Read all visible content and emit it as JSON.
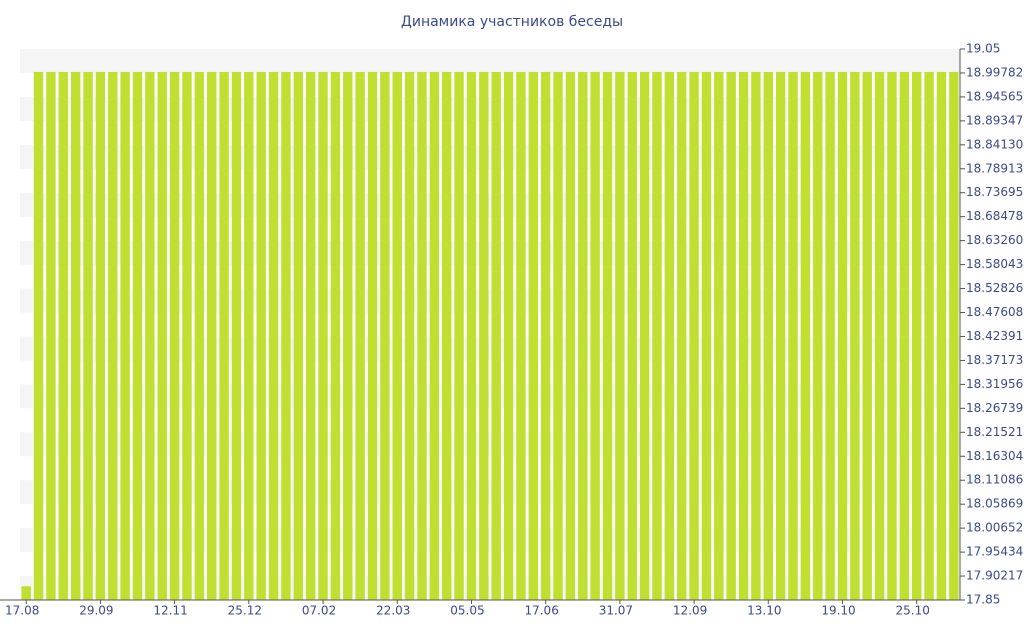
{
  "chart_data": {
    "type": "bar",
    "title": "Динамика участников беседы",
    "categories": [
      "17.08",
      null,
      null,
      null,
      null,
      null,
      "29.09",
      null,
      null,
      null,
      null,
      null,
      "12.11",
      null,
      null,
      null,
      null,
      null,
      "25.12",
      null,
      null,
      null,
      null,
      null,
      "07.02",
      null,
      null,
      null,
      null,
      null,
      "22.03",
      null,
      null,
      null,
      null,
      null,
      "05.05",
      null,
      null,
      null,
      null,
      null,
      "17.06",
      null,
      null,
      null,
      null,
      null,
      "31.07",
      null,
      null,
      null,
      null,
      null,
      "12.09",
      null,
      null,
      null,
      null,
      null,
      "13.10",
      null,
      null,
      null,
      null,
      null,
      "19.10",
      null,
      null,
      null,
      null,
      null,
      "25.10",
      null,
      null,
      null
    ],
    "values": [
      17.88,
      19,
      19,
      19,
      19,
      19,
      19,
      19,
      19,
      19,
      19,
      19,
      19,
      19,
      19,
      19,
      19,
      19,
      19,
      19,
      19,
      19,
      19,
      19,
      19,
      19,
      19,
      19,
      19,
      19,
      19,
      19,
      19,
      19,
      19,
      19,
      19,
      19,
      19,
      19,
      19,
      19,
      19,
      19,
      19,
      19,
      19,
      19,
      19,
      19,
      19,
      19,
      19,
      19,
      19,
      19,
      19,
      19,
      19,
      19,
      19,
      19,
      19,
      19,
      19,
      19,
      19,
      19,
      19,
      19,
      19,
      19,
      19,
      19,
      19,
      19
    ],
    "color": "#bfe031",
    "ylim": [
      17.85,
      19.05
    ],
    "yticks": [
      17.85,
      17.90217391,
      17.95434783,
      18.00652174,
      18.05869565,
      18.11086957,
      18.16304348,
      18.21521739,
      18.2673913,
      18.31956522,
      18.37173913,
      18.42391304,
      18.47608696,
      18.52826087,
      18.58043478,
      18.6326087,
      18.68478261,
      18.73695652,
      18.78913043,
      18.84130435,
      18.89347826,
      18.94565217,
      18.99782609,
      19.05
    ],
    "grid": false
  }
}
